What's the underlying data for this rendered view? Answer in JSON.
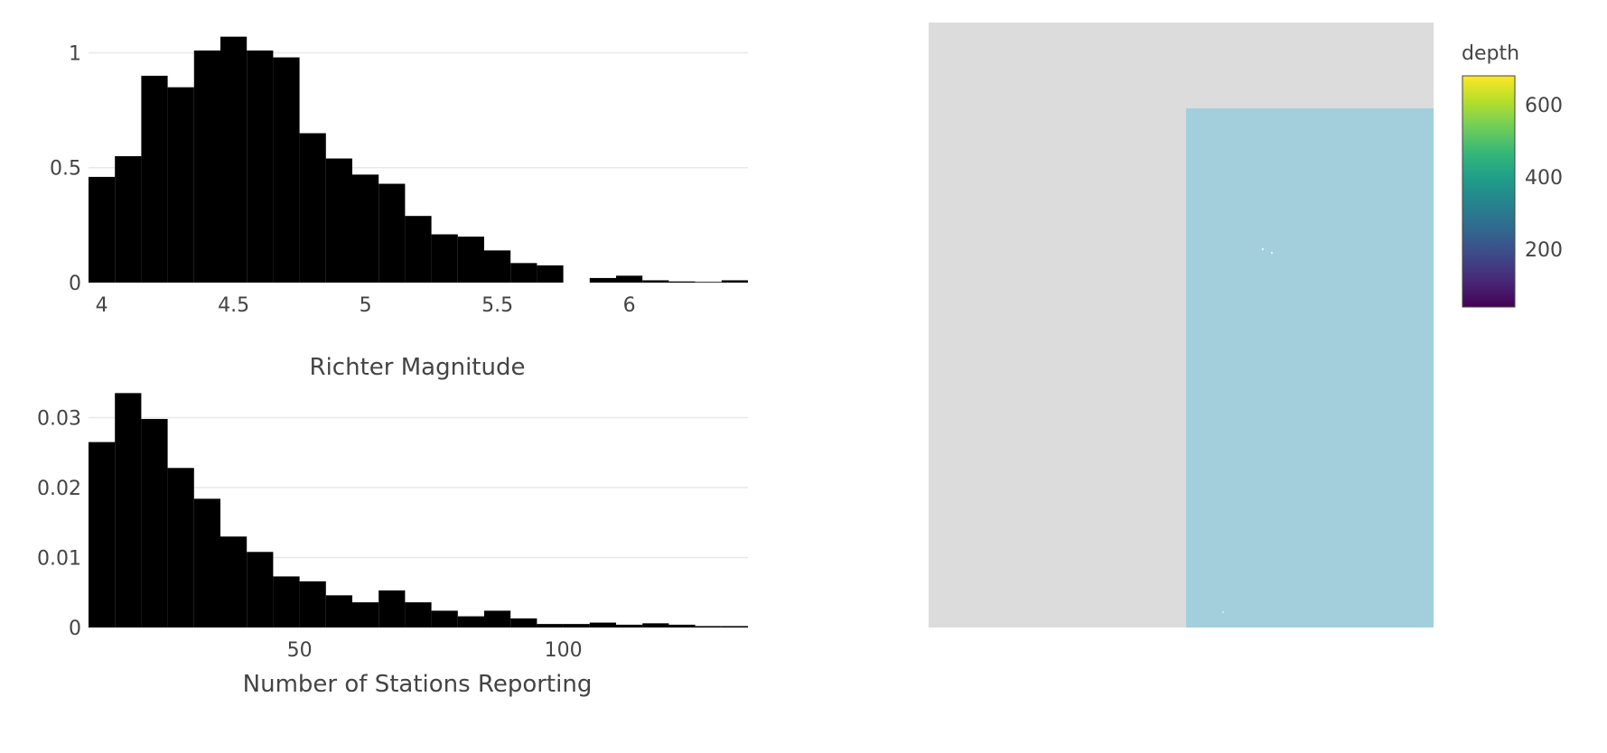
{
  "chart_data": [
    {
      "type": "bar",
      "chart_kind": "histogram",
      "xlabel": "Richter Magnitude",
      "ylabel": "",
      "x_range": [
        3.95,
        6.45
      ],
      "ylim": [
        0,
        1.1
      ],
      "x_ticks": [
        {
          "value": 4,
          "label": "4"
        },
        {
          "value": 4.5,
          "label": "4.5"
        },
        {
          "value": 5,
          "label": "5"
        },
        {
          "value": 5.5,
          "label": "5.5"
        },
        {
          "value": 6,
          "label": "6"
        }
      ],
      "y_ticks": [
        {
          "value": 0,
          "label": "0"
        },
        {
          "value": 0.5,
          "label": "0.5"
        },
        {
          "value": 1,
          "label": "1"
        }
      ],
      "grid": true,
      "bar_color": "#000000",
      "bin_start": 3.95,
      "bin_width": 0.1,
      "values": [
        0.46,
        0.55,
        0.9,
        0.85,
        1.01,
        1.07,
        1.01,
        0.98,
        0.65,
        0.54,
        0.47,
        0.43,
        0.29,
        0.21,
        0.2,
        0.14,
        0.085,
        0.075,
        0.0,
        0.02,
        0.03,
        0.01,
        0.005,
        0.003,
        0.01
      ]
    },
    {
      "type": "bar",
      "chart_kind": "histogram",
      "xlabel": "Number of Stations Reporting",
      "ylabel": "",
      "x_range": [
        10,
        135
      ],
      "ylim": [
        0,
        0.036
      ],
      "x_ticks": [
        {
          "value": 50,
          "label": "50"
        },
        {
          "value": 100,
          "label": "100"
        }
      ],
      "y_ticks": [
        {
          "value": 0,
          "label": "0"
        },
        {
          "value": 0.01,
          "label": "0.01"
        },
        {
          "value": 0.02,
          "label": "0.02"
        },
        {
          "value": 0.03,
          "label": "0.03"
        }
      ],
      "grid": true,
      "bar_color": "#000000",
      "bin_start": 10,
      "bin_width": 5,
      "values": [
        0.0265,
        0.0335,
        0.0298,
        0.0228,
        0.0184,
        0.013,
        0.0108,
        0.0073,
        0.0066,
        0.0046,
        0.0036,
        0.0053,
        0.0036,
        0.0024,
        0.0016,
        0.0024,
        0.0013,
        0.0005,
        0.0005,
        0.0007,
        0.0004,
        0.0006,
        0.0004,
        0.0002,
        0.0002
      ]
    },
    {
      "type": "scatter",
      "chart_kind": "scattergeo",
      "land_color": "#dcdcdc",
      "ocean_color": "#a3cfdc",
      "colorbar": {
        "title": "depth",
        "colorscale": "Viridis",
        "range": [
          40,
          680
        ],
        "ticks": [
          {
            "value": 200,
            "label": "200"
          },
          {
            "value": 400,
            "label": "400"
          },
          {
            "value": 600,
            "label": "600"
          }
        ],
        "stops": [
          "#440154",
          "#482878",
          "#3e4989",
          "#31688e",
          "#26828e",
          "#1f9e89",
          "#35b779",
          "#6ece58",
          "#b5de2b",
          "#fde725"
        ]
      }
    }
  ]
}
